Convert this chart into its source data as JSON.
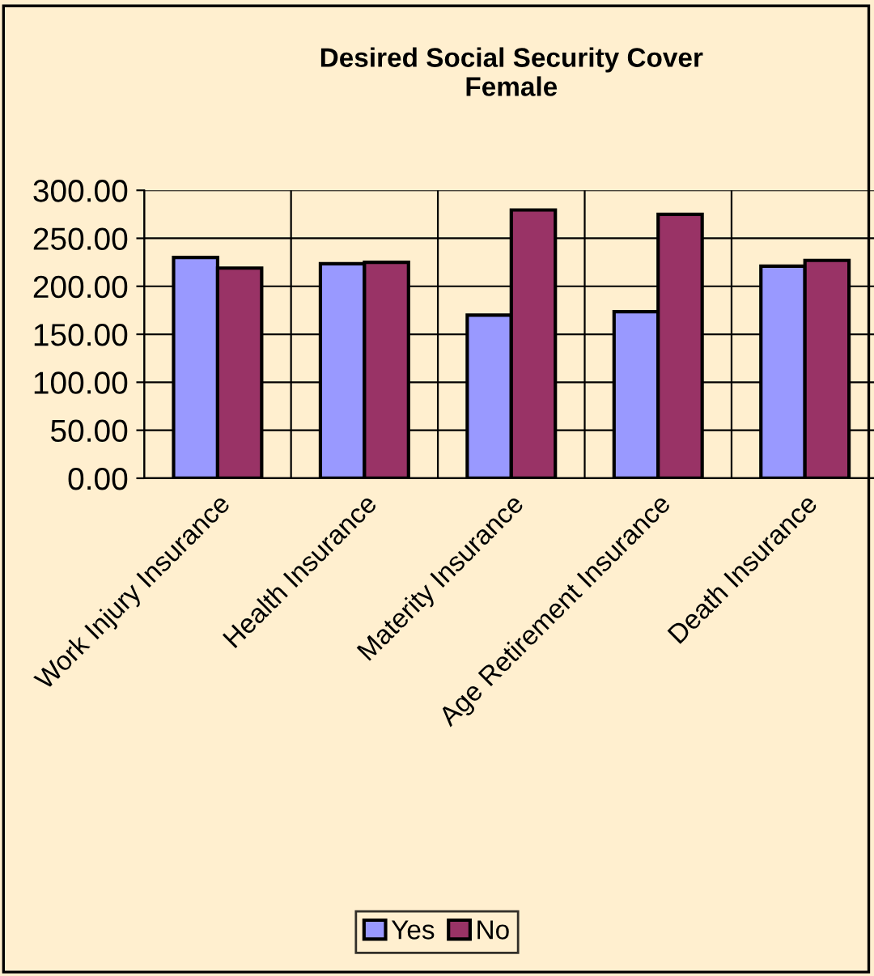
{
  "chart_data": {
    "type": "bar",
    "title": "Desired Social Security Cover\nFemale",
    "categories": [
      "Work Injury Insurance",
      "Health Insurance",
      "Materity Insurance",
      "Age Retirement Insurance",
      "Death Insurance"
    ],
    "series": [
      {
        "name": "Yes",
        "color": "#9999ff",
        "values": [
          230,
          223.5,
          170,
          173.5,
          221
        ]
      },
      {
        "name": "No",
        "color": "#993366",
        "values": [
          219,
          225,
          279.5,
          275,
          227
        ]
      }
    ],
    "ylim": [
      0,
      300
    ],
    "yticks": [
      {
        "value": 0,
        "label": "0.00"
      },
      {
        "value": 50,
        "label": "50.00"
      },
      {
        "value": 100,
        "label": "100.00"
      },
      {
        "value": 150,
        "label": "150.00"
      },
      {
        "value": 200,
        "label": "200.00"
      },
      {
        "value": 250,
        "label": "250.00"
      },
      {
        "value": 300,
        "label": "300.00"
      }
    ],
    "grid": true,
    "legend": "bottom"
  }
}
